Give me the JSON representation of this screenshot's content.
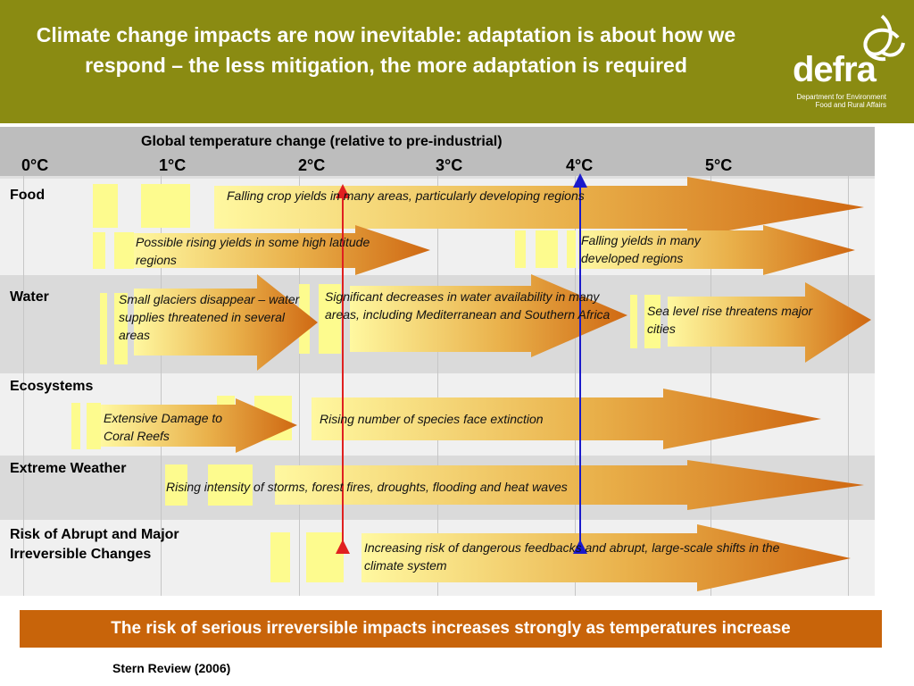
{
  "header": {
    "title": "Climate change impacts are now inevitable: adaptation is about how we respond – the less mitigation, the more adaptation is required",
    "logo_text": "defra",
    "logo_subtitle": "Department for Environment Food and Rural Affairs",
    "colors": {
      "background": "#8a8b12",
      "text": "#ffffff"
    }
  },
  "chart": {
    "axis_title": "Global temperature change (relative to pre-industrial)",
    "ticks": [
      "0°C",
      "1°C",
      "2°C",
      "3°C",
      "4°C",
      "5°C"
    ],
    "rows": [
      {
        "label": "Food"
      },
      {
        "label": "Water"
      },
      {
        "label": "Ecosystems"
      },
      {
        "label": "Extreme Weather"
      },
      {
        "label": "Risk of Abrupt and Major Irreversible Changes"
      }
    ],
    "arrows": [
      {
        "text": "Falling crop yields in many areas, particularly developing regions"
      },
      {
        "text": "Possible rising yields in some high latitude regions"
      },
      {
        "text": "Falling yields in many developed regions"
      },
      {
        "text": "Small glaciers disappear – water supplies threatened in several areas"
      },
      {
        "text": "Significant decreases in water availability in many areas, including Mediterranean and Southern Africa"
      },
      {
        "text": "Sea level rise threatens major cities"
      },
      {
        "text": "Extensive Damage to Coral Reefs"
      },
      {
        "text": "Rising number of species face extinction"
      },
      {
        "text": "Rising intensity of storms, forest fires, droughts, flooding and heat waves"
      },
      {
        "text": "Increasing risk of dangerous feedbacks and abrupt, large-scale shifts in the climate system"
      }
    ],
    "markers": [
      {
        "temperature_c": 2,
        "color": "#e02020"
      },
      {
        "temperature_c": 4,
        "color": "#1a1acc"
      }
    ],
    "colors": {
      "arrow_start": "#fff8a0",
      "arrow_end": "#d06a12",
      "block": "#fdfb8e"
    }
  },
  "banner": {
    "text": "The risk of serious irreversible impacts increases strongly as temperatures increase",
    "color": "#c8640a"
  },
  "source": "Stern Review (2006)"
}
